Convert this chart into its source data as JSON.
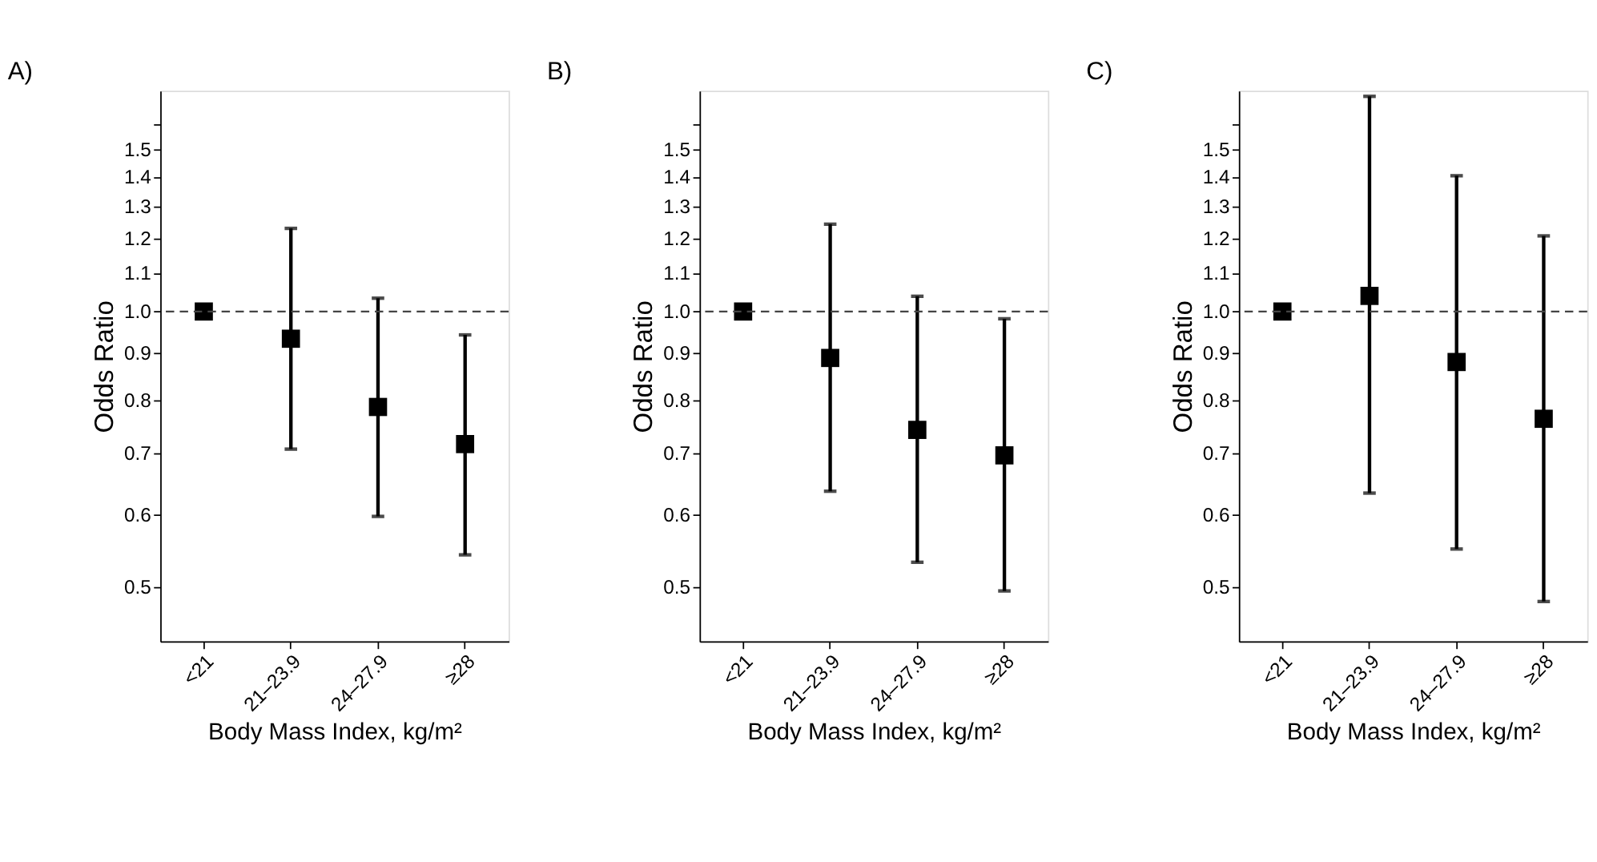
{
  "chart_data": [
    {
      "type": "scatter",
      "title": "A)",
      "xlabel": "Body Mass Index, kg/m²",
      "ylabel": "Odds Ratio",
      "categories": [
        "<21",
        "21–23.9",
        "24–27.9",
        "≥28"
      ],
      "log": "y",
      "ylim": [
        0.437,
        1.74
      ],
      "yticks": [
        0.5,
        0.6,
        0.7,
        0.8,
        0.9,
        {
          "value": 1,
          "label": "1.0"
        },
        1.1,
        1.2,
        1.3,
        1.4,
        1.5,
        {
          "value": 1.6,
          "label": null
        }
      ],
      "marker": "square",
      "grid": false,
      "series": [
        {
          "color": "#000000",
          "values": [
            1.0,
            0.934,
            0.787,
            0.717
          ],
          "errors": [
            null,
            [
              0.708,
              1.232
            ],
            [
              0.598,
              1.034
            ],
            [
              0.543,
              0.943
            ]
          ]
        }
      ],
      "ref_lines": [
        {
          "axis": "y",
          "value": 1,
          "line_style": "dashed",
          "color": "#444444"
        }
      ]
    },
    {
      "type": "scatter",
      "title": "B)",
      "xlabel": "Body Mass Index, kg/m²",
      "ylabel": "Odds Ratio",
      "categories": [
        "<21",
        "21–23.9",
        "24–27.9",
        "≥28"
      ],
      "log": "y",
      "ylim": [
        0.437,
        1.74
      ],
      "yticks": [
        0.5,
        0.6,
        0.7,
        0.8,
        0.9,
        {
          "value": 1,
          "label": "1.0"
        },
        1.1,
        1.2,
        1.3,
        1.4,
        1.5,
        {
          "value": 1.6,
          "label": null
        }
      ],
      "marker": "square",
      "grid": false,
      "series": [
        {
          "color": "#000000",
          "values": [
            1.0,
            0.89,
            0.743,
            0.697
          ],
          "errors": [
            null,
            [
              0.637,
              1.245
            ],
            [
              0.533,
              1.039
            ],
            [
              0.496,
              0.982
            ]
          ]
        }
      ],
      "ref_lines": [
        {
          "axis": "y",
          "value": 1,
          "line_style": "dashed",
          "color": "#444444"
        }
      ]
    },
    {
      "type": "scatter",
      "title": "C)",
      "xlabel": "Body Mass Index, kg/m²",
      "ylabel": "Odds Ratio",
      "categories": [
        "<21",
        "21–23.9",
        "24–27.9",
        "≥28"
      ],
      "log": "y",
      "ylim": [
        0.437,
        1.74
      ],
      "yticks": [
        0.5,
        0.6,
        0.7,
        0.8,
        0.9,
        {
          "value": 1,
          "label": "1.0"
        },
        1.1,
        1.2,
        1.3,
        1.4,
        1.5,
        {
          "value": 1.6,
          "label": null
        }
      ],
      "marker": "square",
      "grid": false,
      "series": [
        {
          "color": "#000000",
          "values": [
            1.0,
            1.04,
            0.881,
            0.764
          ],
          "errors": [
            null,
            [
              0.634,
              1.716
            ],
            [
              0.551,
              1.406
            ],
            [
              0.483,
              1.209
            ]
          ]
        }
      ],
      "ref_lines": [
        {
          "axis": "y",
          "value": 1,
          "line_style": "dashed",
          "color": "#444444"
        }
      ]
    }
  ]
}
